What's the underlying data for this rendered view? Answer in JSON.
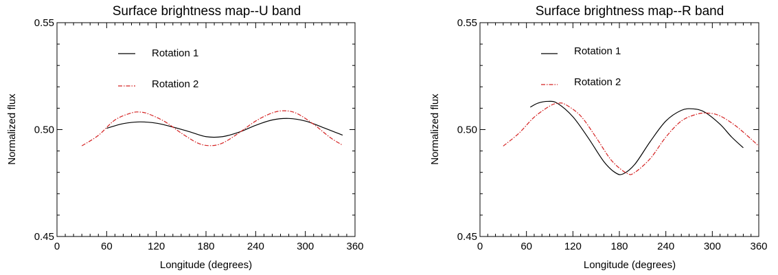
{
  "chart_data": [
    {
      "type": "line",
      "title": "Surface brightness map--U band",
      "xlabel": "Longitude (degrees)",
      "ylabel": "Normalized flux",
      "xlim": [
        0,
        360
      ],
      "ylim": [
        0.45,
        0.55
      ],
      "xticks": [
        "0",
        "60",
        "120",
        "180",
        "240",
        "300",
        "360"
      ],
      "yticks": [
        "0.45",
        "0.50",
        "0.55"
      ],
      "legend_position": "top-left",
      "series": [
        {
          "name": "Rotation 1",
          "color": "#000000",
          "style": "solid",
          "x": [
            60,
            80,
            100,
            120,
            140,
            160,
            180,
            200,
            220,
            240,
            260,
            280,
            300,
            320,
            345
          ],
          "y": [
            0.5006,
            0.5028,
            0.5036,
            0.503,
            0.5012,
            0.499,
            0.4967,
            0.4967,
            0.4988,
            0.502,
            0.5045,
            0.5052,
            0.504,
            0.5012,
            0.4974
          ]
        },
        {
          "name": "Rotation 2",
          "color": "#d42020",
          "style": "dashdot",
          "x": [
            30,
            50,
            70,
            90,
            100,
            110,
            130,
            150,
            170,
            185,
            200,
            220,
            240,
            260,
            275,
            290,
            310,
            330,
            345
          ],
          "y": [
            0.4924,
            0.4973,
            0.5045,
            0.5078,
            0.5082,
            0.5074,
            0.5038,
            0.4984,
            0.4937,
            0.4925,
            0.4937,
            0.4985,
            0.504,
            0.5078,
            0.5088,
            0.5075,
            0.5025,
            0.4963,
            0.4927
          ]
        }
      ]
    },
    {
      "type": "line",
      "title": "Surface brightness map--R band",
      "xlabel": "Longitude (degrees)",
      "ylabel": "Normalized flux",
      "xlim": [
        0,
        360
      ],
      "ylim": [
        0.45,
        0.55
      ],
      "xticks": [
        "0",
        "60",
        "120",
        "180",
        "240",
        "300",
        "360"
      ],
      "yticks": [
        "0.45",
        "0.50",
        "0.55"
      ],
      "legend_position": "top-left",
      "series": [
        {
          "name": "Rotation 1",
          "color": "#000000",
          "style": "solid",
          "x": [
            65,
            75,
            88,
            100,
            120,
            140,
            160,
            175,
            185,
            200,
            220,
            240,
            260,
            275,
            290,
            310,
            325,
            340
          ],
          "y": [
            0.5105,
            0.5124,
            0.5132,
            0.5123,
            0.506,
            0.496,
            0.485,
            0.4798,
            0.4793,
            0.4838,
            0.4945,
            0.504,
            0.509,
            0.5097,
            0.5082,
            0.5025,
            0.4965,
            0.4915
          ]
        },
        {
          "name": "Rotation 2",
          "color": "#d42020",
          "style": "dashdot",
          "x": [
            30,
            50,
            70,
            90,
            100,
            110,
            130,
            150,
            170,
            190,
            200,
            220,
            240,
            260,
            280,
            295,
            310,
            330,
            350,
            360
          ],
          "y": [
            0.4923,
            0.4982,
            0.5058,
            0.511,
            0.5123,
            0.5118,
            0.5064,
            0.4963,
            0.4855,
            0.4795,
            0.48,
            0.4865,
            0.4965,
            0.504,
            0.5072,
            0.5077,
            0.5064,
            0.5018,
            0.4956,
            0.4923
          ]
        }
      ]
    }
  ]
}
